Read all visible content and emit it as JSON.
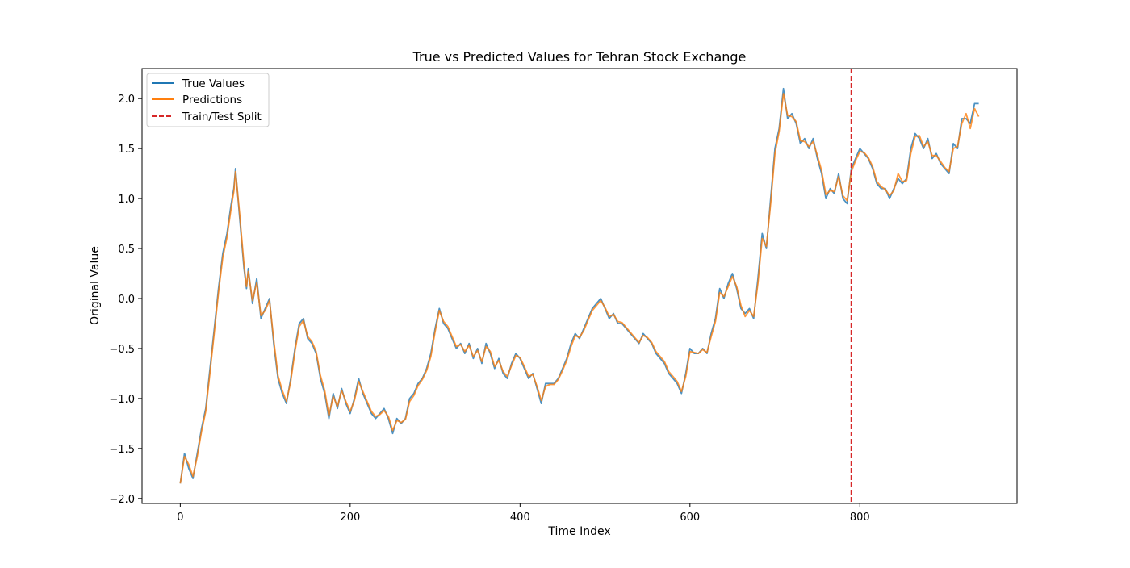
{
  "chart_data": {
    "type": "line",
    "title": "True vs Predicted Values for Tehran Stock Exchange",
    "xlabel": "Time Index",
    "ylabel": "Original Value",
    "xlim": [
      -45,
      985
    ],
    "ylim": [
      -2.05,
      2.3
    ],
    "xticks": [
      0,
      200,
      400,
      600,
      800
    ],
    "xtick_labels": [
      "0",
      "200",
      "400",
      "600",
      "800"
    ],
    "yticks": [
      -2.0,
      -1.5,
      -1.0,
      -0.5,
      0.0,
      0.5,
      1.0,
      1.5,
      2.0
    ],
    "ytick_labels": [
      "−2.0",
      "−1.5",
      "−1.0",
      "−0.5",
      "0.0",
      "0.5",
      "1.0",
      "1.5",
      "2.0"
    ],
    "grid": false,
    "legend_position": "top-left",
    "split": {
      "name": "Train/Test Split",
      "x": 790,
      "color": "#d62728",
      "style": "dashed"
    },
    "series": [
      {
        "name": "True Values",
        "color": "#1f77b4",
        "x": [
          0,
          5,
          10,
          15,
          20,
          25,
          30,
          35,
          40,
          45,
          50,
          55,
          60,
          63,
          65,
          70,
          75,
          78,
          80,
          85,
          90,
          95,
          100,
          105,
          110,
          115,
          120,
          125,
          130,
          135,
          140,
          145,
          150,
          155,
          160,
          165,
          170,
          175,
          180,
          185,
          190,
          195,
          200,
          205,
          210,
          215,
          220,
          225,
          230,
          235,
          240,
          245,
          250,
          255,
          260,
          265,
          270,
          275,
          280,
          285,
          290,
          295,
          300,
          305,
          310,
          315,
          320,
          325,
          330,
          335,
          340,
          345,
          350,
          355,
          360,
          365,
          370,
          375,
          380,
          385,
          390,
          395,
          400,
          405,
          410,
          415,
          420,
          425,
          430,
          435,
          440,
          445,
          450,
          455,
          460,
          465,
          470,
          475,
          480,
          485,
          490,
          495,
          500,
          505,
          510,
          515,
          520,
          525,
          530,
          535,
          540,
          545,
          550,
          555,
          560,
          565,
          570,
          575,
          580,
          585,
          590,
          595,
          600,
          605,
          610,
          615,
          620,
          625,
          630,
          635,
          640,
          645,
          650,
          655,
          660,
          665,
          670,
          675,
          680,
          685,
          690,
          695,
          700,
          705,
          710,
          715,
          720,
          725,
          730,
          735,
          740,
          745,
          750,
          755,
          760,
          765,
          770,
          775,
          780,
          785,
          790,
          795,
          800,
          805,
          810,
          815,
          820,
          825,
          830,
          835,
          840,
          845,
          850,
          855,
          860,
          865,
          870,
          875,
          880,
          885,
          890,
          895,
          900,
          905,
          910,
          915,
          920,
          925,
          930,
          935,
          940
        ],
        "values": [
          -1.85,
          -1.55,
          -1.7,
          -1.8,
          -1.55,
          -1.3,
          -1.1,
          -0.7,
          -0.3,
          0.1,
          0.45,
          0.65,
          0.95,
          1.1,
          1.3,
          0.8,
          0.3,
          0.1,
          0.3,
          -0.05,
          0.2,
          -0.2,
          -0.1,
          0.0,
          -0.45,
          -0.8,
          -0.95,
          -1.05,
          -0.8,
          -0.5,
          -0.25,
          -0.2,
          -0.4,
          -0.45,
          -0.55,
          -0.8,
          -0.95,
          -1.2,
          -0.95,
          -1.1,
          -0.9,
          -1.05,
          -1.15,
          -1.0,
          -0.8,
          -0.95,
          -1.05,
          -1.15,
          -1.2,
          -1.15,
          -1.1,
          -1.2,
          -1.35,
          -1.2,
          -1.25,
          -1.2,
          -1.0,
          -0.95,
          -0.85,
          -0.8,
          -0.7,
          -0.55,
          -0.3,
          -0.1,
          -0.25,
          -0.3,
          -0.4,
          -0.5,
          -0.45,
          -0.55,
          -0.45,
          -0.6,
          -0.5,
          -0.65,
          -0.45,
          -0.55,
          -0.7,
          -0.6,
          -0.75,
          -0.8,
          -0.65,
          -0.55,
          -0.6,
          -0.7,
          -0.8,
          -0.75,
          -0.9,
          -1.05,
          -0.85,
          -0.85,
          -0.85,
          -0.8,
          -0.7,
          -0.6,
          -0.45,
          -0.35,
          -0.4,
          -0.3,
          -0.2,
          -0.1,
          -0.05,
          0.0,
          -0.1,
          -0.2,
          -0.15,
          -0.25,
          -0.25,
          -0.3,
          -0.35,
          -0.4,
          -0.45,
          -0.35,
          -0.4,
          -0.45,
          -0.55,
          -0.6,
          -0.65,
          -0.75,
          -0.8,
          -0.85,
          -0.95,
          -0.75,
          -0.5,
          -0.55,
          -0.55,
          -0.5,
          -0.55,
          -0.35,
          -0.2,
          0.1,
          0.0,
          0.15,
          0.25,
          0.1,
          -0.1,
          -0.15,
          -0.1,
          -0.2,
          0.2,
          0.65,
          0.5,
          1.0,
          1.5,
          1.7,
          2.1,
          1.8,
          1.85,
          1.75,
          1.55,
          1.6,
          1.5,
          1.6,
          1.4,
          1.25,
          1.0,
          1.1,
          1.05,
          1.25,
          1.0,
          0.95,
          1.3,
          1.4,
          1.5,
          1.45,
          1.4,
          1.3,
          1.15,
          1.1,
          1.1,
          1.0,
          1.1,
          1.2,
          1.15,
          1.2,
          1.5,
          1.65,
          1.6,
          1.5,
          1.6,
          1.4,
          1.45,
          1.35,
          1.3,
          1.25,
          1.55,
          1.5,
          1.8,
          1.8,
          1.75,
          1.95,
          1.95
        ]
      },
      {
        "name": "Predictions",
        "color": "#ff7f0e",
        "x": [
          0,
          5,
          10,
          15,
          20,
          25,
          30,
          35,
          40,
          45,
          50,
          55,
          60,
          63,
          65,
          70,
          75,
          78,
          80,
          85,
          90,
          95,
          100,
          105,
          110,
          115,
          120,
          125,
          130,
          135,
          140,
          145,
          150,
          155,
          160,
          165,
          170,
          175,
          180,
          185,
          190,
          195,
          200,
          205,
          210,
          215,
          220,
          225,
          230,
          235,
          240,
          245,
          250,
          255,
          260,
          265,
          270,
          275,
          280,
          285,
          290,
          295,
          300,
          305,
          310,
          315,
          320,
          325,
          330,
          335,
          340,
          345,
          350,
          355,
          360,
          365,
          370,
          375,
          380,
          385,
          390,
          395,
          400,
          405,
          410,
          415,
          420,
          425,
          430,
          435,
          440,
          445,
          450,
          455,
          460,
          465,
          470,
          475,
          480,
          485,
          490,
          495,
          500,
          505,
          510,
          515,
          520,
          525,
          530,
          535,
          540,
          545,
          550,
          555,
          560,
          565,
          570,
          575,
          580,
          585,
          590,
          595,
          600,
          605,
          610,
          615,
          620,
          625,
          630,
          635,
          640,
          645,
          650,
          655,
          660,
          665,
          670,
          675,
          680,
          685,
          690,
          695,
          700,
          705,
          710,
          715,
          720,
          725,
          730,
          735,
          740,
          745,
          750,
          755,
          760,
          765,
          770,
          775,
          780,
          785,
          790,
          795,
          800,
          805,
          810,
          815,
          820,
          825,
          830,
          835,
          840,
          845,
          850,
          855,
          860,
          865,
          870,
          875,
          880,
          885,
          890,
          895,
          900,
          905,
          910,
          915,
          920,
          925,
          930,
          935,
          940
        ],
        "values": [
          -1.85,
          -1.58,
          -1.66,
          -1.78,
          -1.58,
          -1.33,
          -1.13,
          -0.74,
          -0.34,
          0.06,
          0.41,
          0.61,
          0.91,
          1.07,
          1.27,
          0.84,
          0.34,
          0.12,
          0.27,
          -0.02,
          0.16,
          -0.17,
          -0.12,
          -0.02,
          -0.41,
          -0.77,
          -0.92,
          -1.03,
          -0.83,
          -0.53,
          -0.28,
          -0.22,
          -0.38,
          -0.43,
          -0.53,
          -0.77,
          -0.92,
          -1.17,
          -0.98,
          -1.08,
          -0.92,
          -1.03,
          -1.13,
          -1.02,
          -0.83,
          -0.93,
          -1.03,
          -1.13,
          -1.18,
          -1.16,
          -1.12,
          -1.18,
          -1.32,
          -1.22,
          -1.24,
          -1.21,
          -1.03,
          -0.97,
          -0.87,
          -0.81,
          -0.72,
          -0.58,
          -0.33,
          -0.12,
          -0.23,
          -0.28,
          -0.38,
          -0.48,
          -0.46,
          -0.53,
          -0.47,
          -0.58,
          -0.52,
          -0.63,
          -0.48,
          -0.53,
          -0.68,
          -0.62,
          -0.73,
          -0.78,
          -0.67,
          -0.57,
          -0.59,
          -0.68,
          -0.78,
          -0.76,
          -0.88,
          -1.02,
          -0.88,
          -0.86,
          -0.86,
          -0.81,
          -0.72,
          -0.62,
          -0.48,
          -0.37,
          -0.39,
          -0.32,
          -0.22,
          -0.12,
          -0.07,
          -0.02,
          -0.09,
          -0.18,
          -0.16,
          -0.23,
          -0.24,
          -0.29,
          -0.34,
          -0.39,
          -0.44,
          -0.37,
          -0.39,
          -0.44,
          -0.53,
          -0.58,
          -0.63,
          -0.73,
          -0.78,
          -0.83,
          -0.93,
          -0.78,
          -0.53,
          -0.54,
          -0.55,
          -0.51,
          -0.54,
          -0.38,
          -0.23,
          0.06,
          0.02,
          0.12,
          0.22,
          0.12,
          -0.07,
          -0.18,
          -0.12,
          -0.18,
          0.15,
          0.6,
          0.52,
          0.95,
          1.45,
          1.67,
          2.05,
          1.83,
          1.82,
          1.77,
          1.58,
          1.57,
          1.52,
          1.57,
          1.43,
          1.28,
          1.04,
          1.08,
          1.07,
          1.22,
          1.03,
          0.98,
          1.27,
          1.38,
          1.47,
          1.46,
          1.41,
          1.32,
          1.17,
          1.12,
          1.09,
          1.03,
          1.08,
          1.25,
          1.17,
          1.18,
          1.45,
          1.62,
          1.63,
          1.52,
          1.57,
          1.43,
          1.43,
          1.37,
          1.31,
          1.27,
          1.5,
          1.52,
          1.75,
          1.85,
          1.7,
          1.9,
          1.82
        ]
      }
    ]
  }
}
